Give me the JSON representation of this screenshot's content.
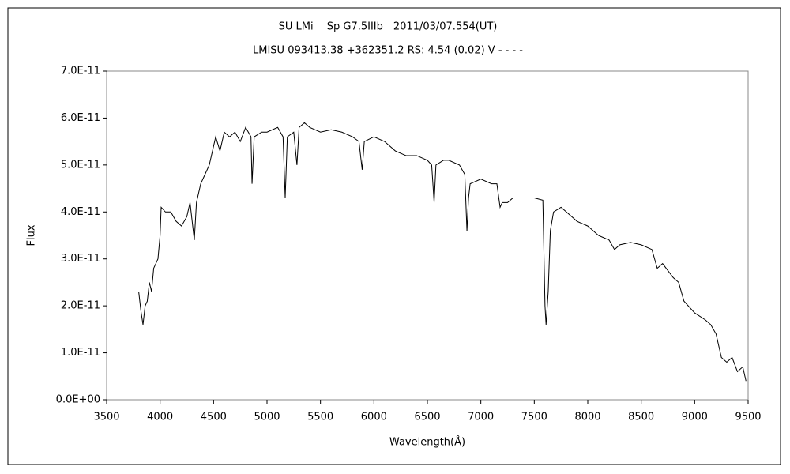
{
  "chart_data": {
    "type": "line",
    "title": "SU LMi　 Sp G7.5IIIb　2011/03/07.554(UT)",
    "subtitle": "LMISU 093413.38 +362351.2 RS: 4.54 (0.02) V - - - -",
    "x_label": "Wavelength(Å)",
    "y_label": "Flux",
    "xlim": [
      3500,
      9500
    ],
    "xticks": [
      3500,
      4000,
      4500,
      5000,
      5500,
      6000,
      6500,
      7000,
      7500,
      8000,
      8500,
      9000,
      9500
    ],
    "ylim": [
      0,
      7e-11
    ],
    "yticks": [
      {
        "value": 0,
        "label": "0.0E+00"
      },
      {
        "value": 1e-11,
        "label": "1.0E-11"
      },
      {
        "value": 2e-11,
        "label": "2.0E-11"
      },
      {
        "value": 3e-11,
        "label": "3.0E-11"
      },
      {
        "value": 4e-11,
        "label": "4.0E-11"
      },
      {
        "value": 5e-11,
        "label": "5.0E-11"
      },
      {
        "value": 6e-11,
        "label": "6.0E-11"
      },
      {
        "value": 7e-11,
        "label": "7.0E-11"
      }
    ],
    "grid": false,
    "series": [
      {
        "color": "#000000",
        "x": [
          3800,
          3820,
          3840,
          3860,
          3880,
          3900,
          3920,
          3940,
          3960,
          3980,
          4000,
          4010,
          4050,
          4100,
          4150,
          4200,
          4250,
          4280,
          4300,
          4320,
          4340,
          4380,
          4420,
          4460,
          4500,
          4520,
          4560,
          4600,
          4650,
          4700,
          4750,
          4800,
          4850,
          4860,
          4880,
          4950,
          5000,
          5100,
          5150,
          5170,
          5190,
          5250,
          5280,
          5300,
          5350,
          5400,
          5500,
          5600,
          5700,
          5800,
          5860,
          5890,
          5910,
          6000,
          6100,
          6200,
          6300,
          6400,
          6500,
          6540,
          6563,
          6580,
          6650,
          6700,
          6800,
          6850,
          6870,
          6885,
          6900,
          7000,
          7100,
          7150,
          7180,
          7200,
          7250,
          7300,
          7400,
          7500,
          7580,
          7600,
          7610,
          7630,
          7650,
          7680,
          7750,
          7800,
          7900,
          8000,
          8100,
          8200,
          8250,
          8300,
          8400,
          8500,
          8600,
          8650,
          8700,
          8800,
          8850,
          8900,
          9000,
          9100,
          9150,
          9200,
          9250,
          9300,
          9350,
          9400,
          9450,
          9480
        ],
        "values": [
          2.3e-11,
          1.9e-11,
          1.6e-11,
          2e-11,
          2.1e-11,
          2.5e-11,
          2.3e-11,
          2.8e-11,
          2.9e-11,
          3e-11,
          3.5e-11,
          4.1e-11,
          4e-11,
          4e-11,
          3.8e-11,
          3.7e-11,
          3.9e-11,
          4.2e-11,
          3.8e-11,
          3.4e-11,
          4.2e-11,
          4.6e-11,
          4.8e-11,
          5e-11,
          5.4e-11,
          5.6e-11,
          5.3e-11,
          5.7e-11,
          5.6e-11,
          5.7e-11,
          5.5e-11,
          5.8e-11,
          5.6e-11,
          4.6e-11,
          5.6e-11,
          5.7e-11,
          5.7e-11,
          5.8e-11,
          5.6e-11,
          4.3e-11,
          5.6e-11,
          5.7e-11,
          5e-11,
          5.8e-11,
          5.9e-11,
          5.8e-11,
          5.7e-11,
          5.75e-11,
          5.7e-11,
          5.6e-11,
          5.5e-11,
          4.9e-11,
          5.5e-11,
          5.6e-11,
          5.5e-11,
          5.3e-11,
          5.2e-11,
          5.2e-11,
          5.1e-11,
          5e-11,
          4.2e-11,
          5e-11,
          5.1e-11,
          5.1e-11,
          5e-11,
          4.8e-11,
          3.6e-11,
          4.3e-11,
          4.6e-11,
          4.7e-11,
          4.6e-11,
          4.6e-11,
          4.1e-11,
          4.2e-11,
          4.2e-11,
          4.3e-11,
          4.3e-11,
          4.3e-11,
          4.25e-11,
          2e-11,
          1.6e-11,
          2.3e-11,
          3.6e-11,
          4e-11,
          4.1e-11,
          4e-11,
          3.8e-11,
          3.7e-11,
          3.5e-11,
          3.4e-11,
          3.2e-11,
          3.3e-11,
          3.35e-11,
          3.3e-11,
          3.2e-11,
          2.8e-11,
          2.9e-11,
          2.6e-11,
          2.5e-11,
          2.1e-11,
          1.85e-11,
          1.7e-11,
          1.6e-11,
          1.4e-11,
          9e-12,
          8e-12,
          9e-12,
          6e-12,
          7e-12,
          4e-12
        ]
      }
    ]
  }
}
